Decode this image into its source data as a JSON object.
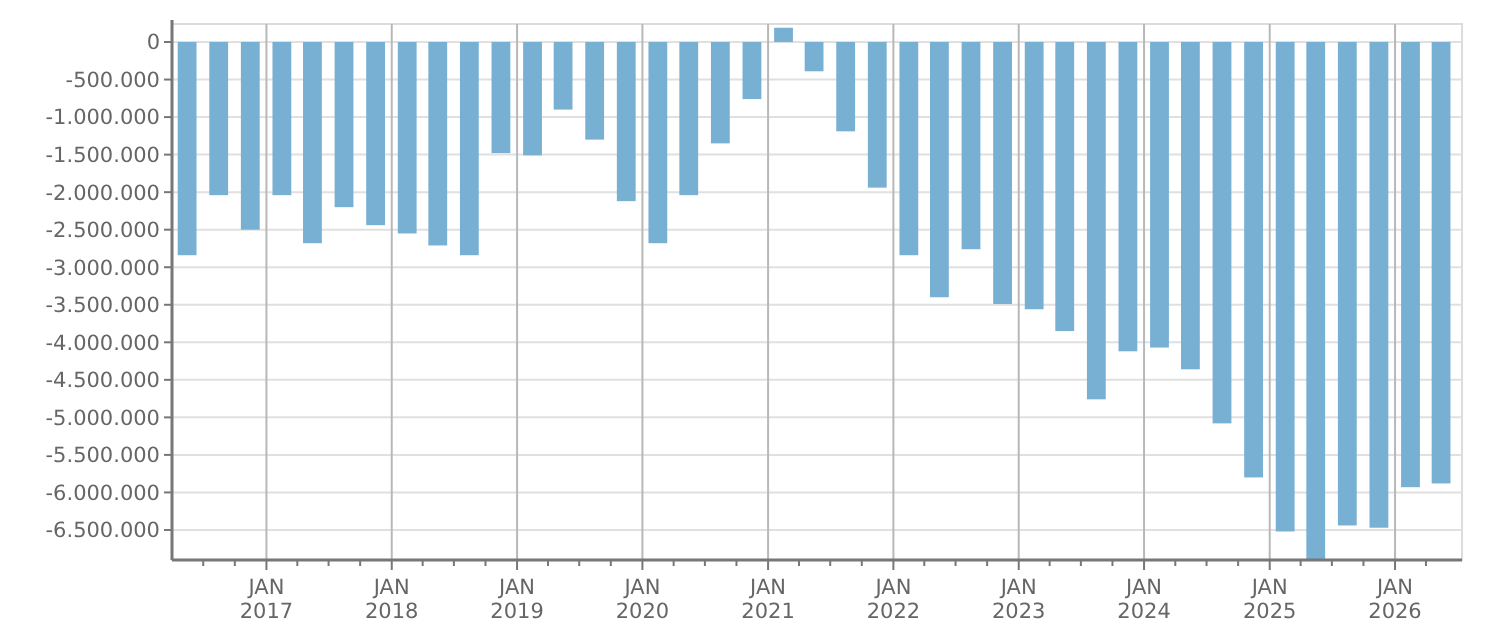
{
  "chart_data": {
    "type": "bar",
    "color": "#77b0d3",
    "x": [
      "2016-05-15",
      "2016-08-15",
      "2016-11-15",
      "2017-02-15",
      "2017-05-15",
      "2017-08-15",
      "2017-11-15",
      "2018-02-15",
      "2018-05-15",
      "2018-08-15",
      "2018-11-15",
      "2019-02-15",
      "2019-05-15",
      "2019-08-15",
      "2019-11-15",
      "2020-02-15",
      "2020-05-15",
      "2020-08-15",
      "2020-11-15",
      "2021-02-15",
      "2021-05-15",
      "2021-08-15",
      "2021-11-15",
      "2022-02-15",
      "2022-05-15",
      "2022-08-15",
      "2022-11-15",
      "2023-02-15",
      "2023-05-15",
      "2023-08-15",
      "2023-11-15",
      "2024-02-15",
      "2024-05-15",
      "2024-08-15",
      "2024-11-15",
      "2025-02-15",
      "2025-05-15",
      "2025-08-15",
      "2025-11-15",
      "2026-02-15",
      "2026-05-15"
    ],
    "values": [
      -2840000,
      -2040000,
      -2500000,
      -2040000,
      -2680000,
      -2200000,
      -2440000,
      -2550000,
      -2710000,
      -2840000,
      -1480000,
      -1510000,
      -900000,
      -1300000,
      -2120000,
      -2680000,
      -2040000,
      -1350000,
      -760000,
      190000,
      -390000,
      -1190000,
      -1940000,
      -2840000,
      -3400000,
      -2760000,
      -3490000,
      -3560000,
      -3850000,
      -4760000,
      -4120000,
      -4070000,
      -4360000,
      -5080000,
      -5800000,
      -6520000,
      -6900000,
      -6440000,
      -6470000,
      -5930000,
      -5880000
    ],
    "xlim": [
      "2016-04-01",
      "2026-07-15"
    ],
    "xticks": [
      {
        "value": "2016-07-01",
        "label": null
      },
      {
        "value": "2016-10-01",
        "label": null
      },
      {
        "value": "2017-01-01",
        "label": "JAN 2017"
      },
      {
        "value": "2017-04-01",
        "label": null
      },
      {
        "value": "2017-07-01",
        "label": null
      },
      {
        "value": "2017-10-01",
        "label": null
      },
      {
        "value": "2018-01-01",
        "label": "JAN 2018"
      },
      {
        "value": "2018-04-01",
        "label": null
      },
      {
        "value": "2018-07-01",
        "label": null
      },
      {
        "value": "2018-10-01",
        "label": null
      },
      {
        "value": "2019-01-01",
        "label": "JAN 2019"
      },
      {
        "value": "2019-04-01",
        "label": null
      },
      {
        "value": "2019-07-01",
        "label": null
      },
      {
        "value": "2019-10-01",
        "label": null
      },
      {
        "value": "2020-01-01",
        "label": "JAN 2020"
      },
      {
        "value": "2020-04-01",
        "label": null
      },
      {
        "value": "2020-07-01",
        "label": null
      },
      {
        "value": "2020-10-01",
        "label": null
      },
      {
        "value": "2021-01-01",
        "label": "JAN 2021"
      },
      {
        "value": "2021-04-01",
        "label": null
      },
      {
        "value": "2021-07-01",
        "label": null
      },
      {
        "value": "2021-10-01",
        "label": null
      },
      {
        "value": "2022-01-01",
        "label": "JAN 2022"
      },
      {
        "value": "2022-04-01",
        "label": null
      },
      {
        "value": "2022-07-01",
        "label": null
      },
      {
        "value": "2022-10-01",
        "label": null
      },
      {
        "value": "2023-01-01",
        "label": "JAN 2023"
      },
      {
        "value": "2023-04-01",
        "label": null
      },
      {
        "value": "2023-07-01",
        "label": null
      },
      {
        "value": "2023-10-01",
        "label": null
      },
      {
        "value": "2024-01-01",
        "label": "JAN 2024"
      },
      {
        "value": "2024-04-01",
        "label": null
      },
      {
        "value": "2024-07-01",
        "label": null
      },
      {
        "value": "2024-10-01",
        "label": null
      },
      {
        "value": "2025-01-01",
        "label": "JAN 2025"
      },
      {
        "value": "2025-04-01",
        "label": null
      },
      {
        "value": "2025-07-01",
        "label": null
      },
      {
        "value": "2025-10-01",
        "label": null
      },
      {
        "value": "2026-01-01",
        "label": "JAN 2026"
      },
      {
        "value": "2026-04-01",
        "label": null
      }
    ],
    "ylim": [
      -6900000,
      240000
    ],
    "yticks": [
      0,
      {
        "value": -500000,
        "label": "-500.000"
      },
      {
        "value": -1000000,
        "label": "-1.000.000"
      },
      {
        "value": -1500000,
        "label": "-1.500.000"
      },
      {
        "value": -2000000,
        "label": "-2.000.000"
      },
      {
        "value": -2500000,
        "label": "-2.500.000"
      },
      {
        "value": -3000000,
        "label": "-3.000.000"
      },
      {
        "value": -3500000,
        "label": "-3.500.000"
      },
      {
        "value": -4000000,
        "label": "-4.000.000"
      },
      {
        "value": -4500000,
        "label": "-4.500.000"
      },
      {
        "value": -5000000,
        "label": "-5.000.000"
      },
      {
        "value": -5500000,
        "label": "-5.500.000"
      },
      {
        "value": -6000000,
        "label": "-6.000.000"
      },
      {
        "value": -6500000,
        "label": "-6.500.000"
      }
    ],
    "grid": true
  }
}
